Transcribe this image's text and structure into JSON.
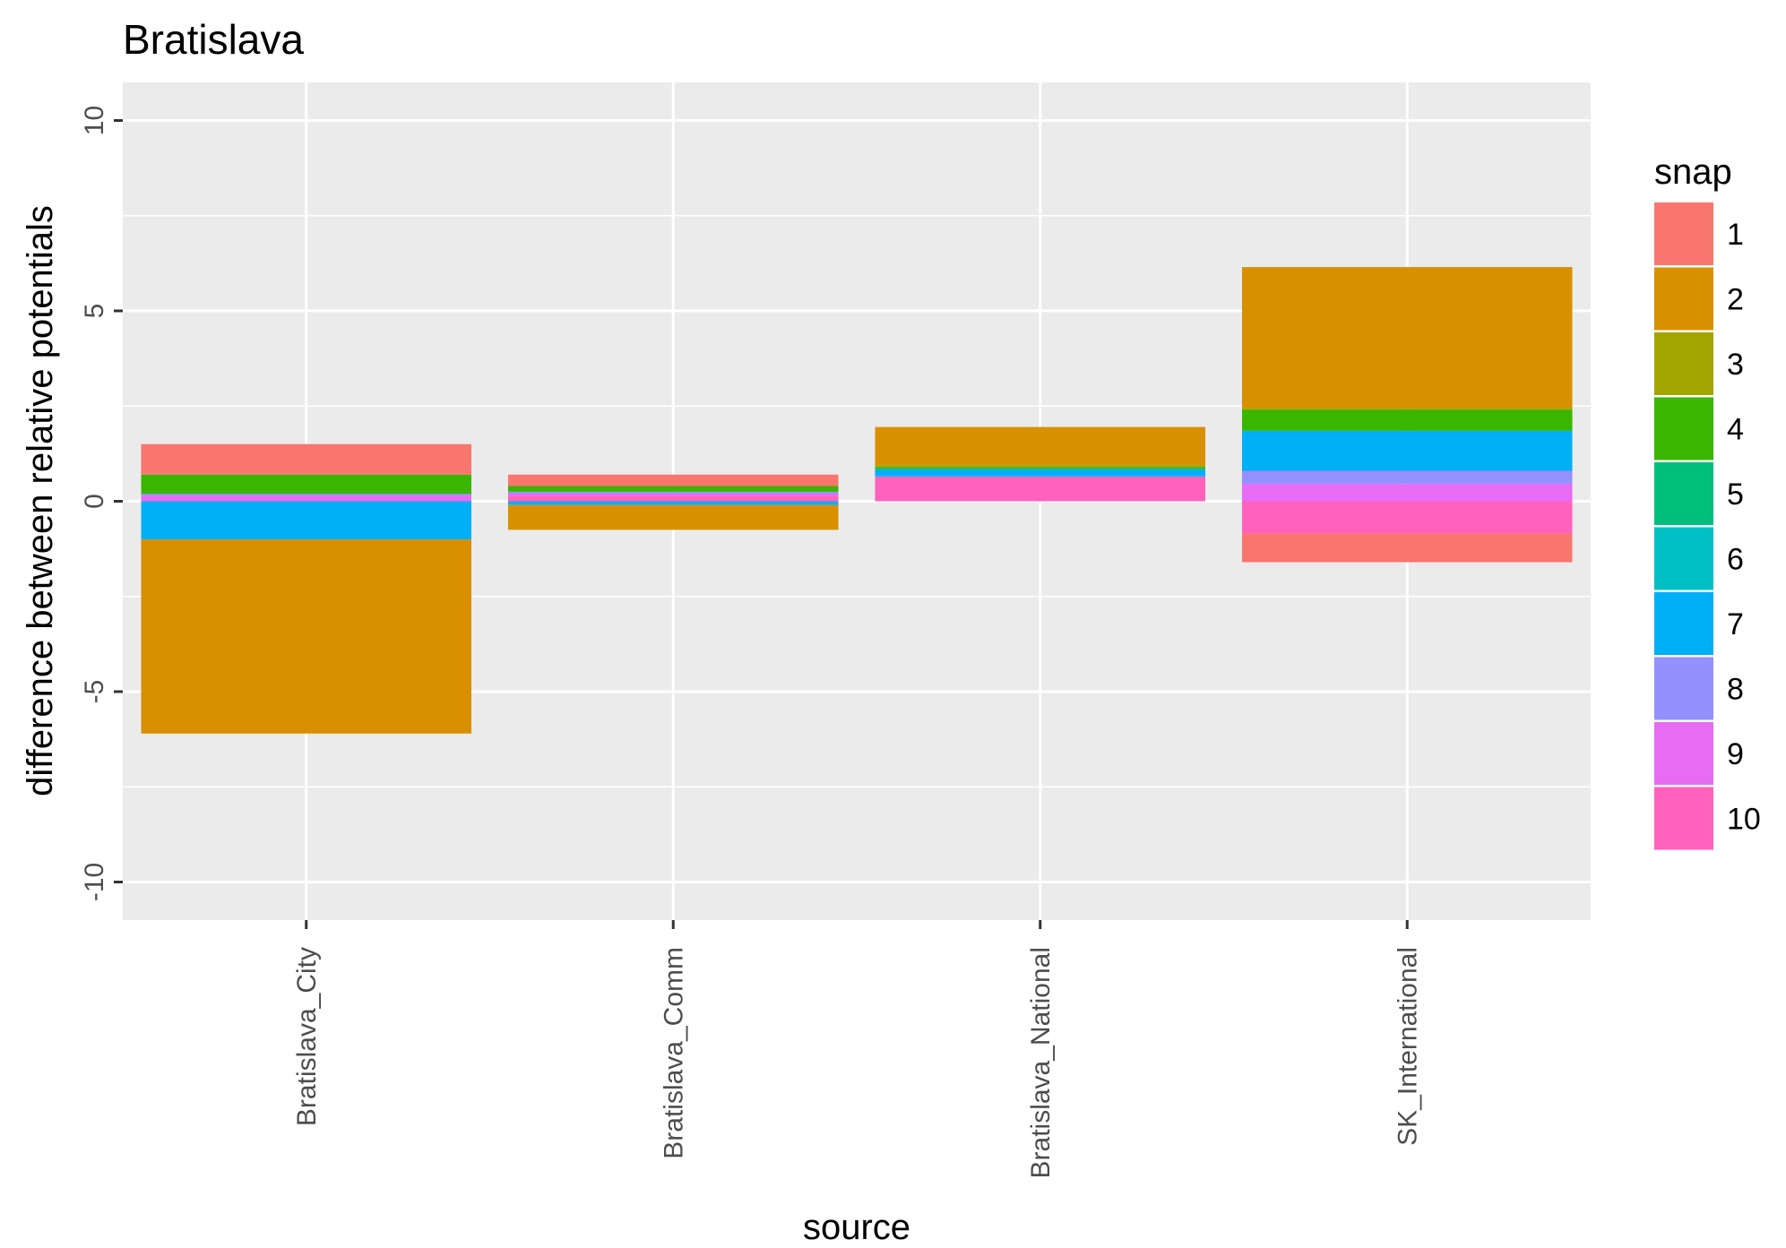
{
  "chart_data": {
    "type": "bar",
    "stacked": true,
    "title": "Bratislava",
    "xlabel": "source",
    "ylabel": "difference between relative potentials",
    "ylim": [
      -11,
      11
    ],
    "yticks": [
      -10,
      -5,
      0,
      5,
      10
    ],
    "categories": [
      "Bratislava_City",
      "Bratislava_Comm",
      "Bratislava_National",
      "SK_International"
    ],
    "legend": {
      "title": "snap",
      "position": "right"
    },
    "grid": true,
    "series": [
      {
        "name": "1",
        "color": "#F8766D",
        "values": [
          0.8,
          0.3,
          0,
          -0.75
        ]
      },
      {
        "name": "2",
        "color": "#D89000",
        "values": [
          -5.1,
          -0.65,
          1.0,
          3.7
        ]
      },
      {
        "name": "3",
        "color": "#A3A500",
        "values": [
          0,
          0,
          0.05,
          0.05
        ]
      },
      {
        "name": "4",
        "color": "#39B600",
        "values": [
          0.5,
          0.15,
          0.05,
          0.55
        ]
      },
      {
        "name": "5",
        "color": "#00BF7D",
        "values": [
          0,
          0,
          0,
          0
        ]
      },
      {
        "name": "6",
        "color": "#00BFC4",
        "values": [
          0,
          0,
          0,
          0
        ]
      },
      {
        "name": "7",
        "color": "#00B0F6",
        "values": [
          -1.0,
          -0.1,
          0.2,
          1.05
        ]
      },
      {
        "name": "8",
        "color": "#9590FF",
        "values": [
          0.05,
          0.05,
          0,
          0.35
        ]
      },
      {
        "name": "9",
        "color": "#E76BF3",
        "values": [
          0.15,
          0.05,
          0,
          0.45
        ]
      },
      {
        "name": "10",
        "color": "#FF62BC",
        "values": [
          0,
          0.15,
          0.65,
          -0.85
        ]
      }
    ]
  }
}
